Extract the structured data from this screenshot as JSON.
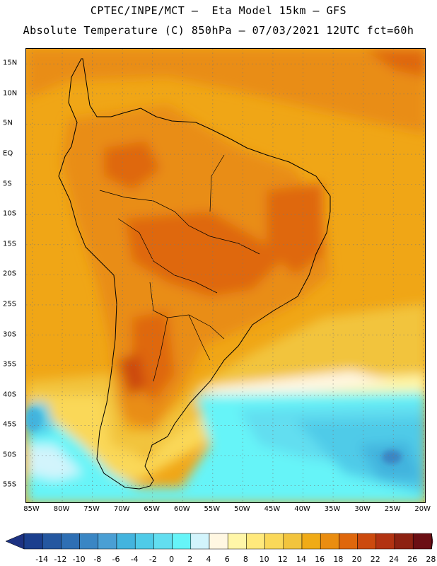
{
  "title": {
    "line1": "CPTEC/INPE/MCT –  Eta Model 15km – GFS",
    "line2": "Absolute Temperature (C) 850hPa – 07/03/2021 12UTC fct=60h"
  },
  "map": {
    "lat_labels": [
      "15N",
      "10N",
      "5N",
      "EQ",
      "5S",
      "10S",
      "15S",
      "20S",
      "25S",
      "30S",
      "35S",
      "40S",
      "45S",
      "50S",
      "55S"
    ],
    "lat_values": [
      15,
      10,
      5,
      0,
      -5,
      -10,
      -15,
      -20,
      -25,
      -30,
      -35,
      -40,
      -45,
      -50,
      -55
    ],
    "lon_labels": [
      "85W",
      "80W",
      "75W",
      "70W",
      "65W",
      "60W",
      "55W",
      "50W",
      "45W",
      "40W",
      "35W",
      "30W",
      "25W",
      "20W"
    ],
    "lon_values": [
      -85,
      -80,
      -75,
      -70,
      -65,
      -60,
      -55,
      -50,
      -45,
      -40,
      -35,
      -30,
      -25,
      -20
    ],
    "extent": {
      "lon_min": -86,
      "lon_max": -19.5,
      "lat_min": -58,
      "lat_max": 17.5
    },
    "gridlines": "dotted",
    "background_color": "#f0a616"
  },
  "colorbar": {
    "labels": [
      "-14",
      "-12",
      "-10",
      "-8",
      "-6",
      "-4",
      "-2",
      "0",
      "2",
      "4",
      "6",
      "8",
      "10",
      "12",
      "14",
      "16",
      "18",
      "20",
      "22",
      "24",
      "26",
      "28"
    ],
    "colors": [
      "#1b3f8e",
      "#2457a0",
      "#2e6fb4",
      "#3a86c4",
      "#4a9fd4",
      "#43b4de",
      "#4fcbe8",
      "#62def0",
      "#66f4f8",
      "#d2f4fc",
      "#fff7e2",
      "#fff6a8",
      "#ffe97c",
      "#fad859",
      "#f2c43d",
      "#f0ab17",
      "#ea8d10",
      "#df670c",
      "#cc4a0e",
      "#b23312",
      "#8d2212",
      "#6b0f14"
    ],
    "under_color": "#1d3282",
    "over_color": "#7a0a22"
  }
}
